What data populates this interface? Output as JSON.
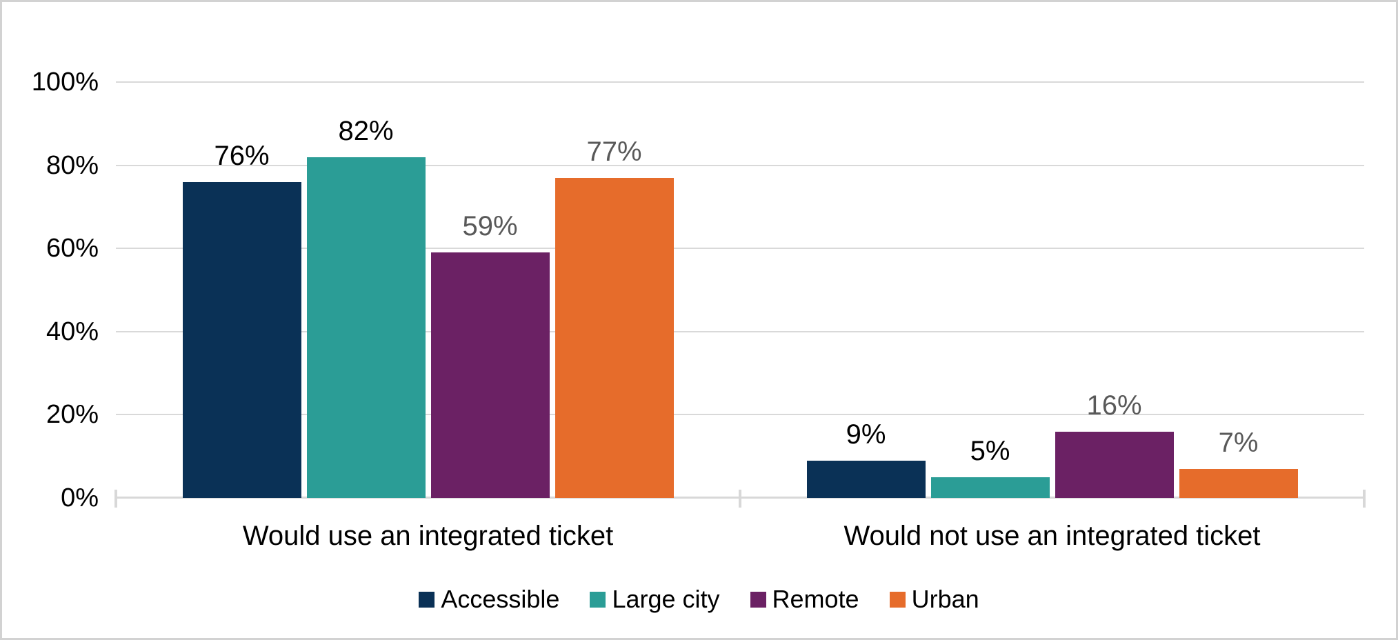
{
  "chart_data": {
    "type": "bar",
    "categories": [
      "Would use an integrated ticket",
      "Would not use an integrated ticket"
    ],
    "series": [
      {
        "name": "Accessible",
        "color": "#0A3156",
        "label_color": "#000000",
        "values": [
          76,
          9
        ],
        "labels": [
          "76%",
          "9%"
        ]
      },
      {
        "name": "Large city",
        "color": "#2B9D96",
        "label_color": "#000000",
        "values": [
          82,
          5
        ],
        "labels": [
          "82%",
          "5%"
        ]
      },
      {
        "name": "Remote",
        "color": "#6B2164",
        "label_color": "#595959",
        "values": [
          59,
          16
        ],
        "labels": [
          "59%",
          "16%"
        ]
      },
      {
        "name": "Urban",
        "color": "#E66C2B",
        "label_color": "#595959",
        "values": [
          77,
          7
        ],
        "labels": [
          "77%",
          "7%"
        ]
      }
    ],
    "y_axis": {
      "min": 0,
      "max": 100,
      "tick_values": [
        0,
        20,
        40,
        60,
        80,
        100
      ],
      "tick_labels": [
        "0%",
        "20%",
        "40%",
        "60%",
        "80%",
        "100%"
      ]
    },
    "grid": true,
    "data_labels": true,
    "legend_position": "bottom",
    "colors": {
      "gridline": "#D9D9D9",
      "axis": "#D8D8D8",
      "background": "#FFFFFF",
      "border": "#D2D2D2"
    }
  }
}
